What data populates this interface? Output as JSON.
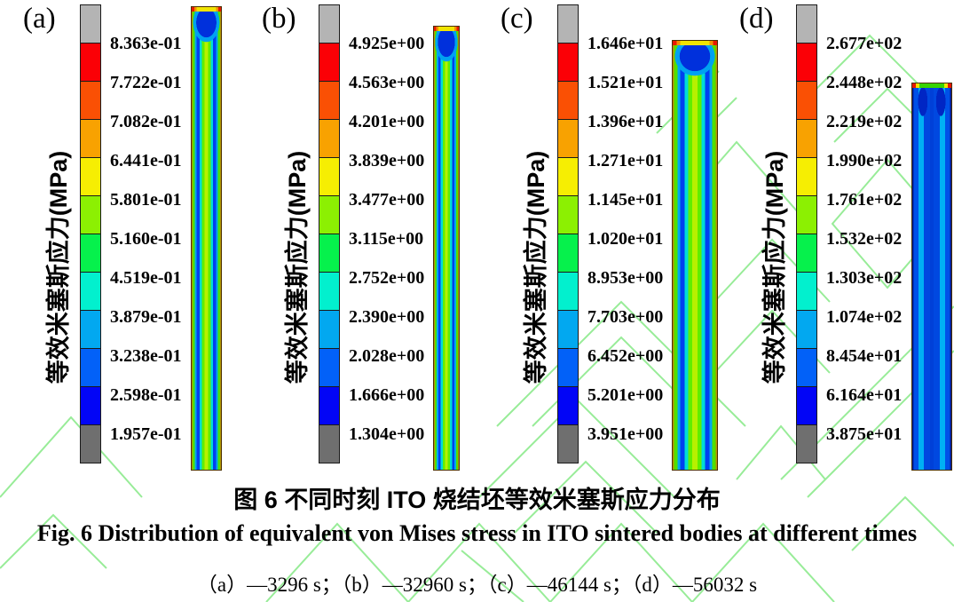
{
  "watermark_color": "#98ec98",
  "colorbar": {
    "axis_label": "等效米塞斯应力(MPa)",
    "unit": "MPa",
    "colors": [
      "#b4b4b4",
      "#fb0006",
      "#fa5004",
      "#f8a201",
      "#f6ee02",
      "#8cf002",
      "#06f14c",
      "#02f0ce",
      "#02a8f0",
      "#0261f8",
      "#0205f6",
      "#6f6f6f"
    ]
  },
  "chart_data": [
    {
      "type": "heatmap",
      "panel_letter": "(a)",
      "time": "3296 s",
      "legend_unit": "MPa",
      "legend_values": [
        "8.363e-01",
        "7.722e-01",
        "7.082e-01",
        "6.441e-01",
        "5.801e-01",
        "5.160e-01",
        "4.519e-01",
        "3.879e-01",
        "3.238e-01",
        "2.598e-01",
        "1.957e-01"
      ]
    },
    {
      "type": "heatmap",
      "panel_letter": "(b)",
      "time": "32960 s",
      "legend_unit": "MPa",
      "legend_values": [
        "4.925e+00",
        "4.563e+00",
        "4.201e+00",
        "3.839e+00",
        "3.477e+00",
        "3.115e+00",
        "2.752e+00",
        "2.390e+00",
        "2.028e+00",
        "1.666e+00",
        "1.304e+00"
      ]
    },
    {
      "type": "heatmap",
      "panel_letter": "(c)",
      "time": "46144 s",
      "legend_unit": "MPa",
      "legend_values": [
        "1.646e+01",
        "1.521e+01",
        "1.396e+01",
        "1.271e+01",
        "1.145e+01",
        "1.020e+01",
        "8.953e+00",
        "7.703e+00",
        "6.452e+00",
        "5.201e+00",
        "3.951e+00"
      ]
    },
    {
      "type": "heatmap",
      "panel_letter": "(d)",
      "time": "56032 s",
      "legend_unit": "MPa",
      "legend_values": [
        "2.677e+02",
        "2.448e+02",
        "2.219e+02",
        "1.990e+02",
        "1.761e+02",
        "1.532e+02",
        "1.303e+02",
        "1.074e+02",
        "8.454e+01",
        "6.164e+01",
        "3.875e+01"
      ]
    }
  ],
  "captions": {
    "zh": "图 6 不同时刻 ITO 烧结坯等效米塞斯应力分布",
    "en": "Fig. 6 Distribution of equivalent von Mises stress in ITO sintered bodies at different times",
    "times": "（a）—3296 s；（b）—32960 s；（c）—46144 s；（d）—56032 s"
  }
}
